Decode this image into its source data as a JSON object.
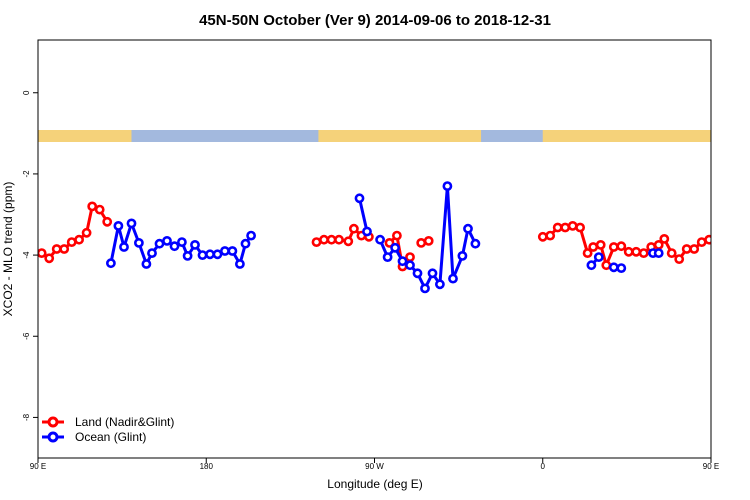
{
  "chart_data": {
    "type": "line",
    "title": "45N-50N October (Ver 9)   2014-09-06 to 2018-12-31",
    "xlabel": "Longitude (deg E)",
    "ylabel": "XCO2 - MLO trend (ppm)",
    "xlim": [
      90,
      450
    ],
    "ylim": [
      -9,
      1.3
    ],
    "x_ticks": [
      {
        "value": 90,
        "label": "90 E"
      },
      {
        "value": 180,
        "label": "180"
      },
      {
        "value": 270,
        "label": "90 W"
      },
      {
        "value": 360,
        "label": "0"
      },
      {
        "value": 450,
        "label": "90 E"
      },
      {
        "value": 540,
        "label": "180"
      }
    ],
    "y_ticks": [
      {
        "value": 0,
        "label": "0"
      },
      {
        "value": -2,
        "label": "-2"
      },
      {
        "value": -4,
        "label": "-4"
      },
      {
        "value": -6,
        "label": "-6"
      },
      {
        "value": -8,
        "label": "-8"
      }
    ],
    "legend_position": "bottom-left",
    "land_strip": {
      "ocean_color": "#a3b9de",
      "land_color": "#f5d27a",
      "land_ranges": [
        [
          90,
          140
        ],
        [
          240,
          327
        ],
        [
          360,
          499
        ]
      ]
    },
    "series": [
      {
        "name": "Land (Nadir&Glint)",
        "color": "#ff0000",
        "segments": [
          [
            [
              92,
              -3.95
            ],
            [
              96,
              -4.08
            ],
            [
              100,
              -3.85
            ],
            [
              104,
              -3.85
            ],
            [
              108,
              -3.68
            ],
            [
              112,
              -3.62
            ],
            [
              116,
              -3.45
            ],
            [
              119,
              -2.8
            ],
            [
              123,
              -2.88
            ],
            [
              127,
              -3.18
            ]
          ],
          [
            [
              239,
              -3.68
            ],
            [
              243,
              -3.62
            ],
            [
              247,
              -3.62
            ],
            [
              251,
              -3.62
            ],
            [
              256,
              -3.66
            ],
            [
              259,
              -3.35
            ],
            [
              263,
              -3.52
            ],
            [
              267,
              -3.55
            ]
          ],
          [
            [
              278,
              -3.7
            ],
            [
              282,
              -3.52
            ],
            [
              285,
              -4.28
            ],
            [
              289,
              -4.05
            ]
          ],
          [
            [
              295,
              -3.7
            ],
            [
              299,
              -3.65
            ]
          ],
          [
            [
              360,
              -3.55
            ],
            [
              364,
              -3.52
            ],
            [
              368,
              -3.32
            ],
            [
              372,
              -3.32
            ],
            [
              376,
              -3.28
            ],
            [
              380,
              -3.32
            ],
            [
              384,
              -3.95
            ],
            [
              387,
              -3.8
            ],
            [
              391,
              -3.75
            ],
            [
              394,
              -4.25
            ],
            [
              398,
              -3.8
            ],
            [
              402,
              -3.78
            ],
            [
              406,
              -3.92
            ],
            [
              410,
              -3.92
            ],
            [
              414,
              -3.95
            ],
            [
              418,
              -3.8
            ],
            [
              422,
              -3.75
            ],
            [
              425,
              -3.6
            ],
            [
              429,
              -3.95
            ],
            [
              433,
              -4.1
            ],
            [
              437,
              -3.85
            ],
            [
              441,
              -3.85
            ],
            [
              445,
              -3.68
            ],
            [
              449,
              -3.62
            ],
            [
              453,
              -3.45
            ],
            [
              456,
              -2.8
            ],
            [
              460,
              -2.88
            ],
            [
              464,
              -3.18
            ]
          ]
        ]
      },
      {
        "name": "Ocean (Glint)",
        "color": "#0000ff",
        "segments": [
          [
            [
              129,
              -4.2
            ],
            [
              133,
              -3.28
            ],
            [
              136,
              -3.8
            ],
            [
              140,
              -3.22
            ],
            [
              144,
              -3.7
            ],
            [
              148,
              -4.22
            ],
            [
              151,
              -3.95
            ],
            [
              155,
              -3.72
            ],
            [
              159,
              -3.65
            ],
            [
              163,
              -3.78
            ],
            [
              167,
              -3.68
            ],
            [
              170,
              -4.02
            ],
            [
              174,
              -3.75
            ],
            [
              178,
              -4.0
            ],
            [
              182,
              -3.98
            ],
            [
              186,
              -3.98
            ],
            [
              190,
              -3.9
            ],
            [
              194,
              -3.9
            ],
            [
              198,
              -4.22
            ],
            [
              201,
              -3.72
            ],
            [
              204,
              -3.52
            ]
          ],
          [
            [
              262,
              -2.6
            ],
            [
              266,
              -3.42
            ]
          ],
          [
            [
              273,
              -3.62
            ],
            [
              277,
              -4.05
            ],
            [
              281,
              -3.82
            ],
            [
              285,
              -4.15
            ],
            [
              289,
              -4.25
            ],
            [
              293,
              -4.45
            ],
            [
              297,
              -4.82
            ],
            [
              301,
              -4.45
            ],
            [
              305,
              -4.72
            ],
            [
              309,
              -2.3
            ],
            [
              312,
              -4.58
            ],
            [
              317,
              -4.02
            ],
            [
              320,
              -3.35
            ],
            [
              324,
              -3.72
            ]
          ],
          [
            [
              386,
              -4.25
            ],
            [
              390,
              -4.05
            ]
          ],
          [
            [
              398,
              -4.3
            ],
            [
              402,
              -4.32
            ]
          ],
          [
            [
              419,
              -3.95
            ],
            [
              422,
              -3.95
            ]
          ],
          [
            [
              466,
              -4.2
            ],
            [
              470,
              -3.28
            ],
            [
              473,
              -3.8
            ],
            [
              477,
              -3.22
            ],
            [
              481,
              -3.7
            ],
            [
              485,
              -4.22
            ],
            [
              488,
              -3.95
            ],
            [
              492,
              -3.72
            ],
            [
              496,
              -3.65
            ]
          ]
        ]
      }
    ]
  }
}
